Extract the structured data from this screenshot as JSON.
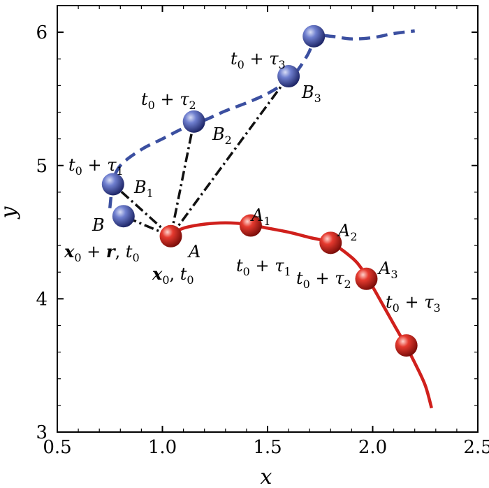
{
  "chart_data": {
    "type": "line",
    "title": "",
    "xlabel": "x",
    "ylabel": "y",
    "xlim": [
      0.5,
      2.5
    ],
    "ylim": [
      3,
      6.2
    ],
    "x_ticks": [
      0.5,
      1.0,
      1.5,
      2.0,
      2.5
    ],
    "x_tick_labels": [
      "0.5",
      "1.0",
      "1.5",
      "2.0",
      "2.5"
    ],
    "y_ticks": [
      3,
      4,
      5,
      6
    ],
    "y_tick_labels": [
      "3",
      "4",
      "5",
      "6"
    ],
    "grid": false,
    "series": [
      {
        "style": "dashed",
        "color": "#3b4fa0",
        "x": [
          0.75,
          0.755,
          0.76,
          0.8,
          0.9,
          1.0,
          1.1,
          1.2,
          1.3,
          1.4,
          1.5,
          1.6,
          1.65,
          1.7,
          1.72,
          1.8,
          1.9,
          2.0,
          2.1,
          2.2
        ],
        "y": [
          4.68,
          4.76,
          4.86,
          5.0,
          5.12,
          5.2,
          5.28,
          5.34,
          5.41,
          5.47,
          5.54,
          5.64,
          5.73,
          5.86,
          5.97,
          5.97,
          5.95,
          5.96,
          5.99,
          6.01
        ]
      },
      {
        "style": "solid",
        "color": "#d0201c",
        "x": [
          1.04,
          1.1,
          1.2,
          1.3,
          1.4,
          1.5,
          1.6,
          1.7,
          1.8,
          1.9,
          1.95,
          2.0,
          2.05,
          2.1,
          2.15,
          2.2,
          2.25,
          2.28
        ],
        "y": [
          4.48,
          4.53,
          4.56,
          4.57,
          4.56,
          4.53,
          4.5,
          4.46,
          4.42,
          4.31,
          4.22,
          4.09,
          3.95,
          3.81,
          3.67,
          3.52,
          3.35,
          3.18
        ]
      }
    ],
    "points": [
      {
        "x": 0.815,
        "y": 4.62,
        "color": "#3b4fa0",
        "label": "B",
        "sublabel": "x₀ + r, t₀"
      },
      {
        "x": 0.765,
        "y": 4.86,
        "color": "#3b4fa0",
        "label": "B₁",
        "sublabel": "t₀ + τ₁"
      },
      {
        "x": 1.15,
        "y": 5.33,
        "color": "#3b4fa0",
        "label": "B₂",
        "sublabel": "t₀ + τ₂"
      },
      {
        "x": 1.6,
        "y": 5.67,
        "color": "#3b4fa0",
        "label": "B₃",
        "sublabel": "t₀ + τ₃"
      },
      {
        "x": 1.72,
        "y": 5.97,
        "color": "#3b4fa0",
        "label": "",
        "sublabel": ""
      },
      {
        "x": 1.04,
        "y": 4.47,
        "color": "#d0201c",
        "label": "A",
        "sublabel": "x₀, t₀"
      },
      {
        "x": 1.42,
        "y": 4.55,
        "color": "#d0201c",
        "label": "A₁",
        "sublabel": "t₀ + τ₁"
      },
      {
        "x": 1.8,
        "y": 4.42,
        "color": "#d0201c",
        "label": "A₂",
        "sublabel": "t₀ + τ₂"
      },
      {
        "x": 1.97,
        "y": 4.15,
        "color": "#d0201c",
        "label": "A₃",
        "sublabel": "t₀ + τ₃"
      },
      {
        "x": 2.16,
        "y": 3.65,
        "color": "#d0201c",
        "label": "",
        "sublabel": ""
      }
    ],
    "connectors": [
      {
        "from": [
          1.04,
          4.47
        ],
        "to": [
          0.815,
          4.62
        ]
      },
      {
        "from": [
          1.04,
          4.47
        ],
        "to": [
          0.765,
          4.86
        ]
      },
      {
        "from": [
          1.04,
          4.47
        ],
        "to": [
          1.15,
          5.33
        ]
      },
      {
        "from": [
          1.04,
          4.47
        ],
        "to": [
          1.6,
          5.67
        ]
      }
    ]
  }
}
